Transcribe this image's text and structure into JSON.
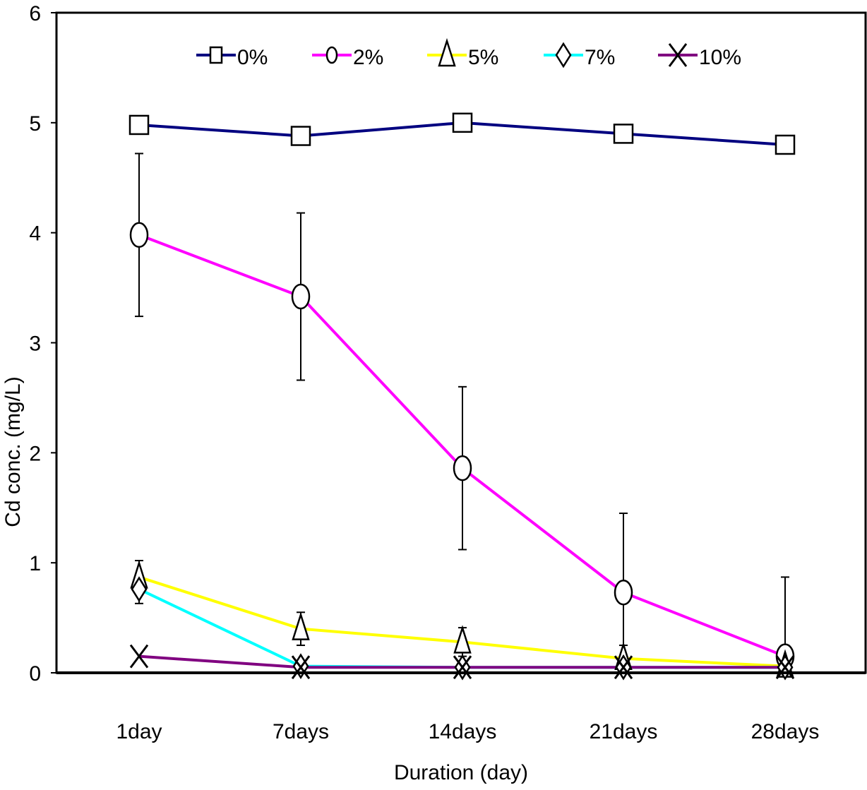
{
  "chart_data": {
    "type": "line",
    "title": "",
    "xlabel": "Duration (day)",
    "ylabel": "Cd   conc. (mg/L)",
    "categories": [
      "1day",
      "7days",
      "14days",
      "21days",
      "28days"
    ],
    "ylim": [
      0,
      6
    ],
    "yticks": [
      0,
      1,
      2,
      3,
      4,
      5,
      6
    ],
    "legend_position": "top",
    "series": [
      {
        "name": "0%",
        "marker": "square",
        "color": "#000080",
        "values": [
          4.98,
          4.88,
          5.0,
          4.9,
          4.8
        ],
        "errors": [
          0,
          0,
          0,
          0,
          0
        ]
      },
      {
        "name": "2%",
        "marker": "circle",
        "color": "#FF00FF",
        "values": [
          3.98,
          3.42,
          1.86,
          0.73,
          0.15
        ],
        "errors": [
          0.74,
          0.76,
          0.74,
          0.72,
          0.72
        ]
      },
      {
        "name": "5%",
        "marker": "triangle",
        "color": "#FFFF00",
        "values": [
          0.87,
          0.4,
          0.28,
          0.13,
          0.06
        ],
        "errors": [
          0.15,
          0.15,
          0.13,
          0.12,
          0.0
        ]
      },
      {
        "name": "7%",
        "marker": "diamond",
        "color": "#00FFFF",
        "values": [
          0.76,
          0.06,
          0.05,
          0.05,
          0.05
        ],
        "errors": [
          0.13,
          0.0,
          0.0,
          0.0,
          0.0
        ]
      },
      {
        "name": "10%",
        "marker": "x",
        "color": "#800080",
        "values": [
          0.15,
          0.05,
          0.05,
          0.05,
          0.05
        ],
        "errors": [
          0,
          0,
          0,
          0,
          0
        ]
      }
    ]
  }
}
